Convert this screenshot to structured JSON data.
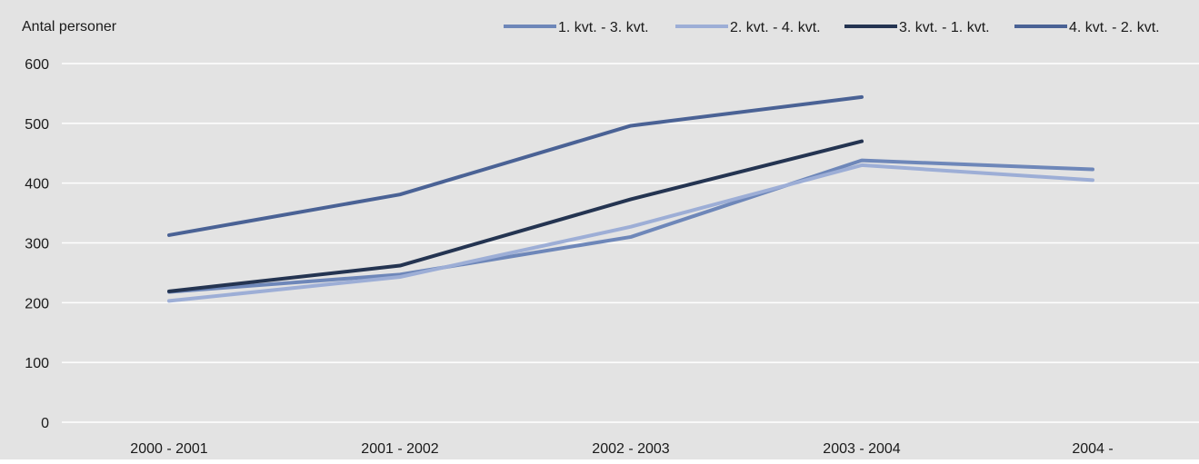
{
  "chart_data": {
    "type": "line",
    "ylabel": "Antal personer",
    "categories": [
      "2000 - 2001",
      "2001 - 2002",
      "2002 - 2003",
      "2003 - 2004",
      "2004 -"
    ],
    "ylim": [
      0,
      600
    ],
    "yticks": [
      0,
      100,
      200,
      300,
      400,
      500,
      600
    ],
    "grid": true,
    "legend_position": "top-right",
    "background_color": "#e3e3e3",
    "series": [
      {
        "name": "1. kvt. - 3. kvt.",
        "color": "#6e87b9",
        "values": [
          218,
          247,
          310,
          438,
          423
        ]
      },
      {
        "name": "2. kvt. - 4. kvt.",
        "color": "#9daed6",
        "values": [
          203,
          243,
          327,
          430,
          405
        ]
      },
      {
        "name": "3. kvt. - 1. kvt.",
        "color": "#243451",
        "values": [
          219,
          262,
          373,
          470,
          null
        ]
      },
      {
        "name": "4. kvt. - 2. kvt.",
        "color": "#4a6295",
        "values": [
          313,
          381,
          496,
          544,
          null
        ]
      }
    ]
  }
}
